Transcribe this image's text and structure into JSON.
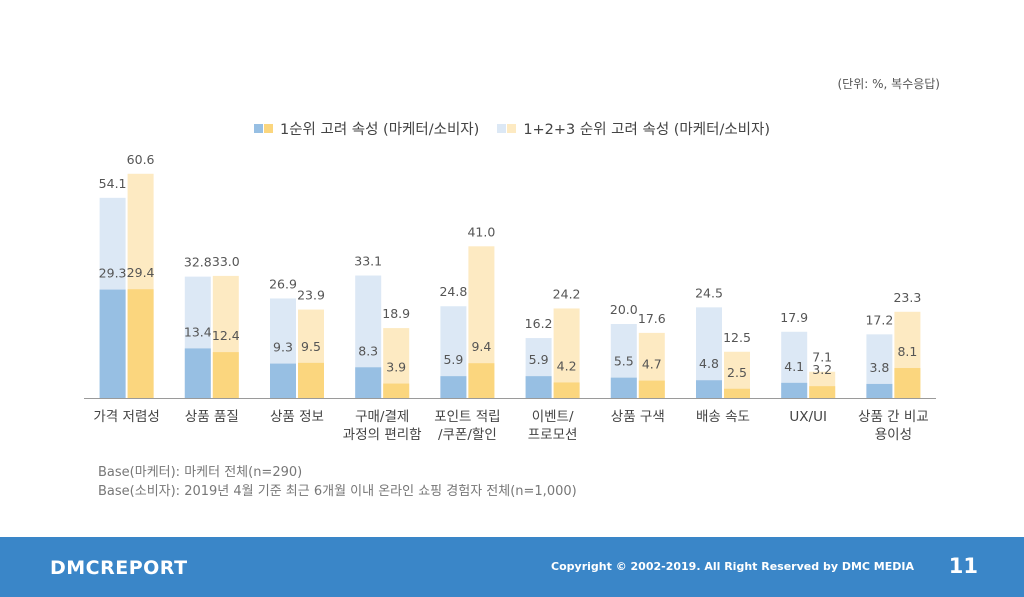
{
  "unit_note": "(단위: %, 복수응답)",
  "legend": {
    "first": "1순위 고려 속성 (마케터/소비자)",
    "second": "1+2+3 순위 고려 속성 (마케터/소비자)"
  },
  "colors": {
    "marketer_first": "#97bfe3",
    "marketer_total": "#dce8f5",
    "consumer_first": "#fbd67e",
    "consumer_total": "#fdeac2",
    "axis": "#9a9a9a",
    "footer": "#3a86c8"
  },
  "chart_data": {
    "type": "bar",
    "categories": [
      [
        "가격 저렴성"
      ],
      [
        "상품 품질"
      ],
      [
        "상품 정보"
      ],
      [
        "구매/결제",
        "과정의 편리함"
      ],
      [
        "포인트 적립",
        "/쿠폰/할인"
      ],
      [
        "이벤트/",
        "프로모션"
      ],
      [
        "상품 구색"
      ],
      [
        "배송 속도"
      ],
      [
        "UX/UI"
      ],
      [
        "상품 간 비교",
        "용이성"
      ]
    ],
    "series": [
      {
        "group": "마케터",
        "rank": "1+2+3",
        "values": [
          54.1,
          32.8,
          26.9,
          33.1,
          24.8,
          16.2,
          20.0,
          24.5,
          17.9,
          17.2
        ]
      },
      {
        "group": "마케터",
        "rank": "1",
        "values": [
          29.3,
          13.4,
          9.3,
          8.3,
          5.9,
          5.9,
          5.5,
          4.8,
          4.1,
          3.8
        ]
      },
      {
        "group": "소비자",
        "rank": "1+2+3",
        "values": [
          60.6,
          33.0,
          23.9,
          18.9,
          41.0,
          24.2,
          17.6,
          12.5,
          7.1,
          23.3
        ]
      },
      {
        "group": "소비자",
        "rank": "1",
        "values": [
          29.4,
          12.4,
          9.5,
          3.9,
          9.4,
          4.2,
          4.7,
          2.5,
          3.2,
          8.1
        ]
      }
    ],
    "ylim": [
      0,
      65
    ]
  },
  "base_notes": [
    "Base(마케터): 마케터 전체(n=290)",
    "Base(소비자): 2019년 4월 기준 최근 6개월 이내 온라인 쇼핑 경험자 전체(n=1,000)"
  ],
  "footer": {
    "logo": "DMCREPORT",
    "copyright": "Copyright © 2002-2019. All Right Reserved by DMC MEDIA",
    "page": "11"
  }
}
